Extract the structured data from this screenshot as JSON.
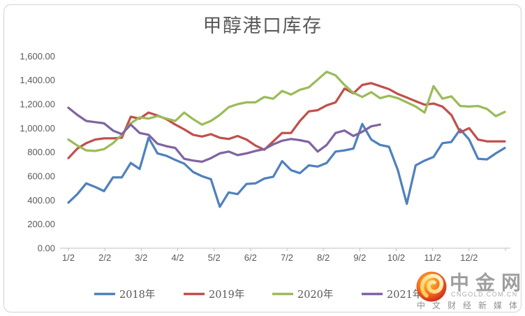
{
  "title": "甲醇港口库存",
  "y_axis": {
    "labels": [
      "1,600.00",
      "1,400.00",
      "1,200.00",
      "1,000.00",
      "800.00",
      "600.00",
      "400.00",
      "200.00",
      "0.00"
    ],
    "max": 1600,
    "min": 0,
    "step": 200
  },
  "x_axis": {
    "labels": [
      "1/2",
      "2/2",
      "3/2",
      "4/2",
      "5/2",
      "6/2",
      "7/2",
      "8/2",
      "9/2",
      "10/2",
      "11/2",
      "12/2"
    ]
  },
  "legend": {
    "items": [
      {
        "label": "2018年",
        "color": "#4F81BD"
      },
      {
        "label": "2019年",
        "color": "#C0504D"
      },
      {
        "label": "2020年",
        "color": "#9BBB59"
      },
      {
        "label": "2021年",
        "color": "#8064A2"
      }
    ]
  },
  "chart_data": {
    "type": "line",
    "title": "甲醇港口库存",
    "frequency": "weekly",
    "x_tick_labels": [
      "1/2",
      "2/2",
      "3/2",
      "4/2",
      "5/2",
      "6/2",
      "7/2",
      "8/2",
      "9/2",
      "10/2",
      "11/2",
      "12/2"
    ],
    "ylim": [
      0,
      1600
    ],
    "grid": false,
    "legend_position": "bottom",
    "series": [
      {
        "name": "2018年",
        "color": "#4F81BD",
        "values": [
          380,
          450,
          540,
          510,
          475,
          590,
          590,
          710,
          660,
          920,
          790,
          770,
          735,
          705,
          635,
          600,
          575,
          345,
          465,
          450,
          535,
          540,
          580,
          595,
          725,
          650,
          625,
          690,
          680,
          710,
          805,
          815,
          830,
          1035,
          905,
          860,
          845,
          650,
          370,
          690,
          730,
          760,
          875,
          885,
          990,
          905,
          745,
          740,
          790,
          835
        ]
      },
      {
        "name": "2019年",
        "color": "#C0504D",
        "values": [
          750,
          830,
          875,
          905,
          915,
          915,
          920,
          1095,
          1080,
          1130,
          1105,
          1075,
          1030,
          990,
          945,
          930,
          950,
          920,
          910,
          935,
          905,
          855,
          820,
          890,
          960,
          960,
          1060,
          1140,
          1150,
          1190,
          1215,
          1330,
          1290,
          1360,
          1375,
          1350,
          1325,
          1285,
          1255,
          1225,
          1195,
          1205,
          1180,
          1110,
          965,
          1000,
          905,
          890,
          890,
          890
        ]
      },
      {
        "name": "2020年",
        "color": "#9BBB59",
        "values": [
          905,
          855,
          815,
          810,
          825,
          875,
          945,
          1040,
          1090,
          1080,
          1100,
          1080,
          1060,
          1130,
          1075,
          1030,
          1060,
          1110,
          1175,
          1200,
          1215,
          1215,
          1260,
          1245,
          1310,
          1280,
          1320,
          1340,
          1405,
          1470,
          1440,
          1360,
          1295,
          1260,
          1300,
          1250,
          1270,
          1250,
          1215,
          1180,
          1130,
          1350,
          1245,
          1265,
          1185,
          1180,
          1185,
          1160,
          1100,
          1135
        ]
      },
      {
        "name": "2021年",
        "color": "#8064A2",
        "values": [
          1170,
          1110,
          1060,
          1050,
          1040,
          980,
          950,
          1030,
          960,
          945,
          870,
          850,
          835,
          745,
          730,
          720,
          750,
          790,
          805,
          775,
          790,
          810,
          825,
          865,
          895,
          910,
          900,
          885,
          805,
          860,
          960,
          980,
          935,
          970,
          1015,
          1030
        ]
      }
    ]
  },
  "watermark": {
    "brand": "中金网",
    "domain": "CNGOLD.COM.CN",
    "tagline": "中文财经新媒体"
  }
}
